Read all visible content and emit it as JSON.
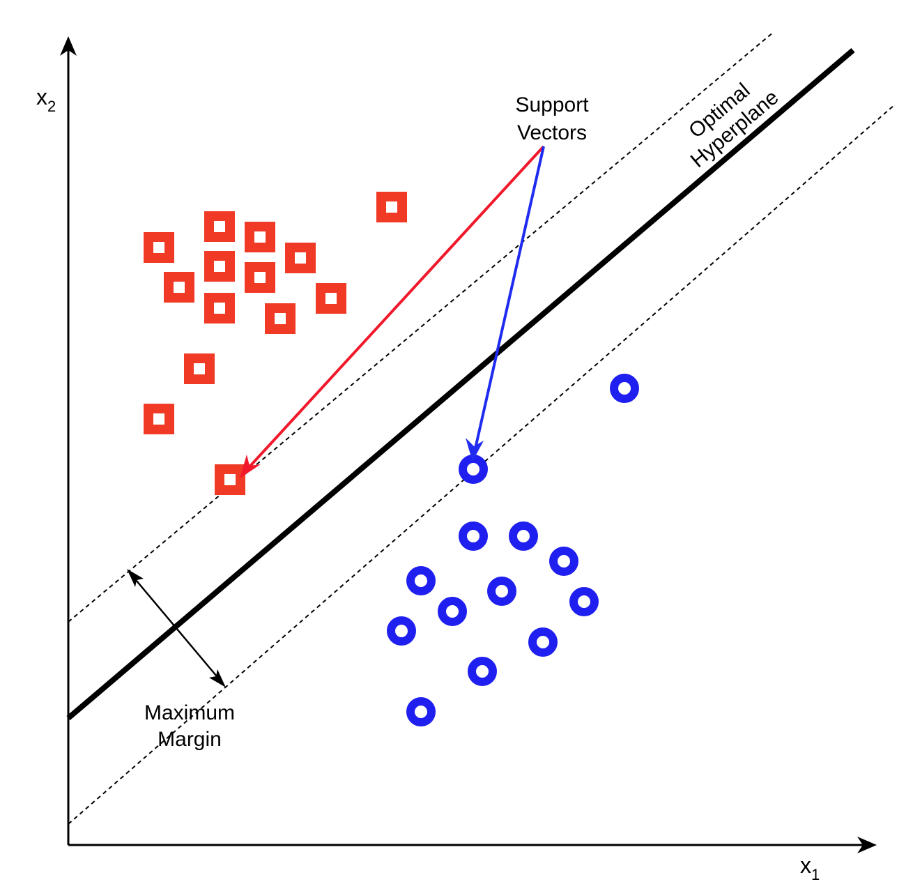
{
  "colors": {
    "class_a": "#f03a26",
    "class_b": "#1f1ff0",
    "red_arrow": "#f0182a",
    "blue_arrow": "#1f2cf0",
    "line": "#000000"
  },
  "axes": {
    "x_label": "x",
    "x_sub": "1",
    "y_label": "x",
    "y_sub": "2"
  },
  "labels": {
    "support_vectors_1": "Support",
    "support_vectors_2": "Vectors",
    "hyperplane_1": "Optimal",
    "hyperplane_2": "Hyperplane",
    "margin_1": "Maximum",
    "margin_2": "Margin"
  },
  "icons": {
    "class_a_marker": "hollow-square-icon",
    "class_b_marker": "ring-circle-icon"
  }
}
